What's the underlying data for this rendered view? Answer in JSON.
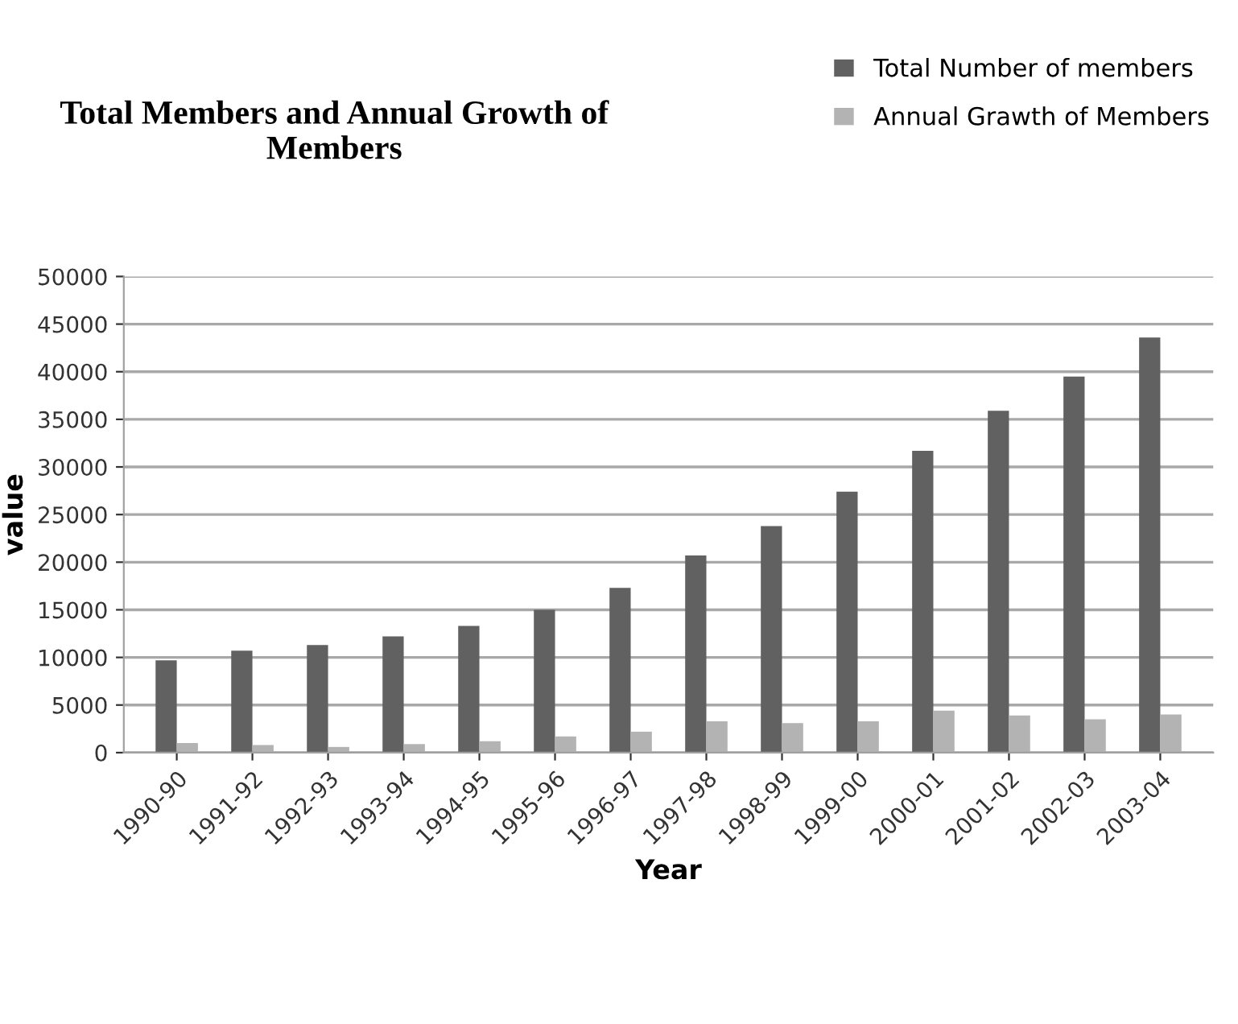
{
  "chart_data": {
    "type": "bar",
    "title": "Total Members and Annual Growth of Members",
    "xlabel": "Year",
    "ylabel": "value",
    "categories": [
      "1990-90",
      "1991-92",
      "1992-93",
      "1993-94",
      "1994-95",
      "1995-96",
      "1996-97",
      "1997-98",
      "1998-99",
      "1999-00",
      "2000-01",
      "2001-02",
      "2002-03",
      "2003-04"
    ],
    "series": [
      {
        "name": "Total Number of members",
        "color": "#616161",
        "values": [
          9700,
          10700,
          11300,
          12200,
          13300,
          15000,
          17300,
          20700,
          23800,
          27400,
          31700,
          35900,
          39500,
          43600
        ]
      },
      {
        "name": "Annual Grawth of Members",
        "color": "#b3b3b3",
        "values": [
          1000,
          800,
          600,
          900,
          1200,
          1700,
          2200,
          3300,
          3100,
          3300,
          4400,
          3900,
          3500,
          4000
        ]
      }
    ],
    "ylim": [
      0,
      50000
    ],
    "yticks": [
      0,
      5000,
      10000,
      15000,
      20000,
      25000,
      30000,
      35000,
      40000,
      45000,
      50000
    ],
    "grid": "y",
    "legend": "top right"
  }
}
